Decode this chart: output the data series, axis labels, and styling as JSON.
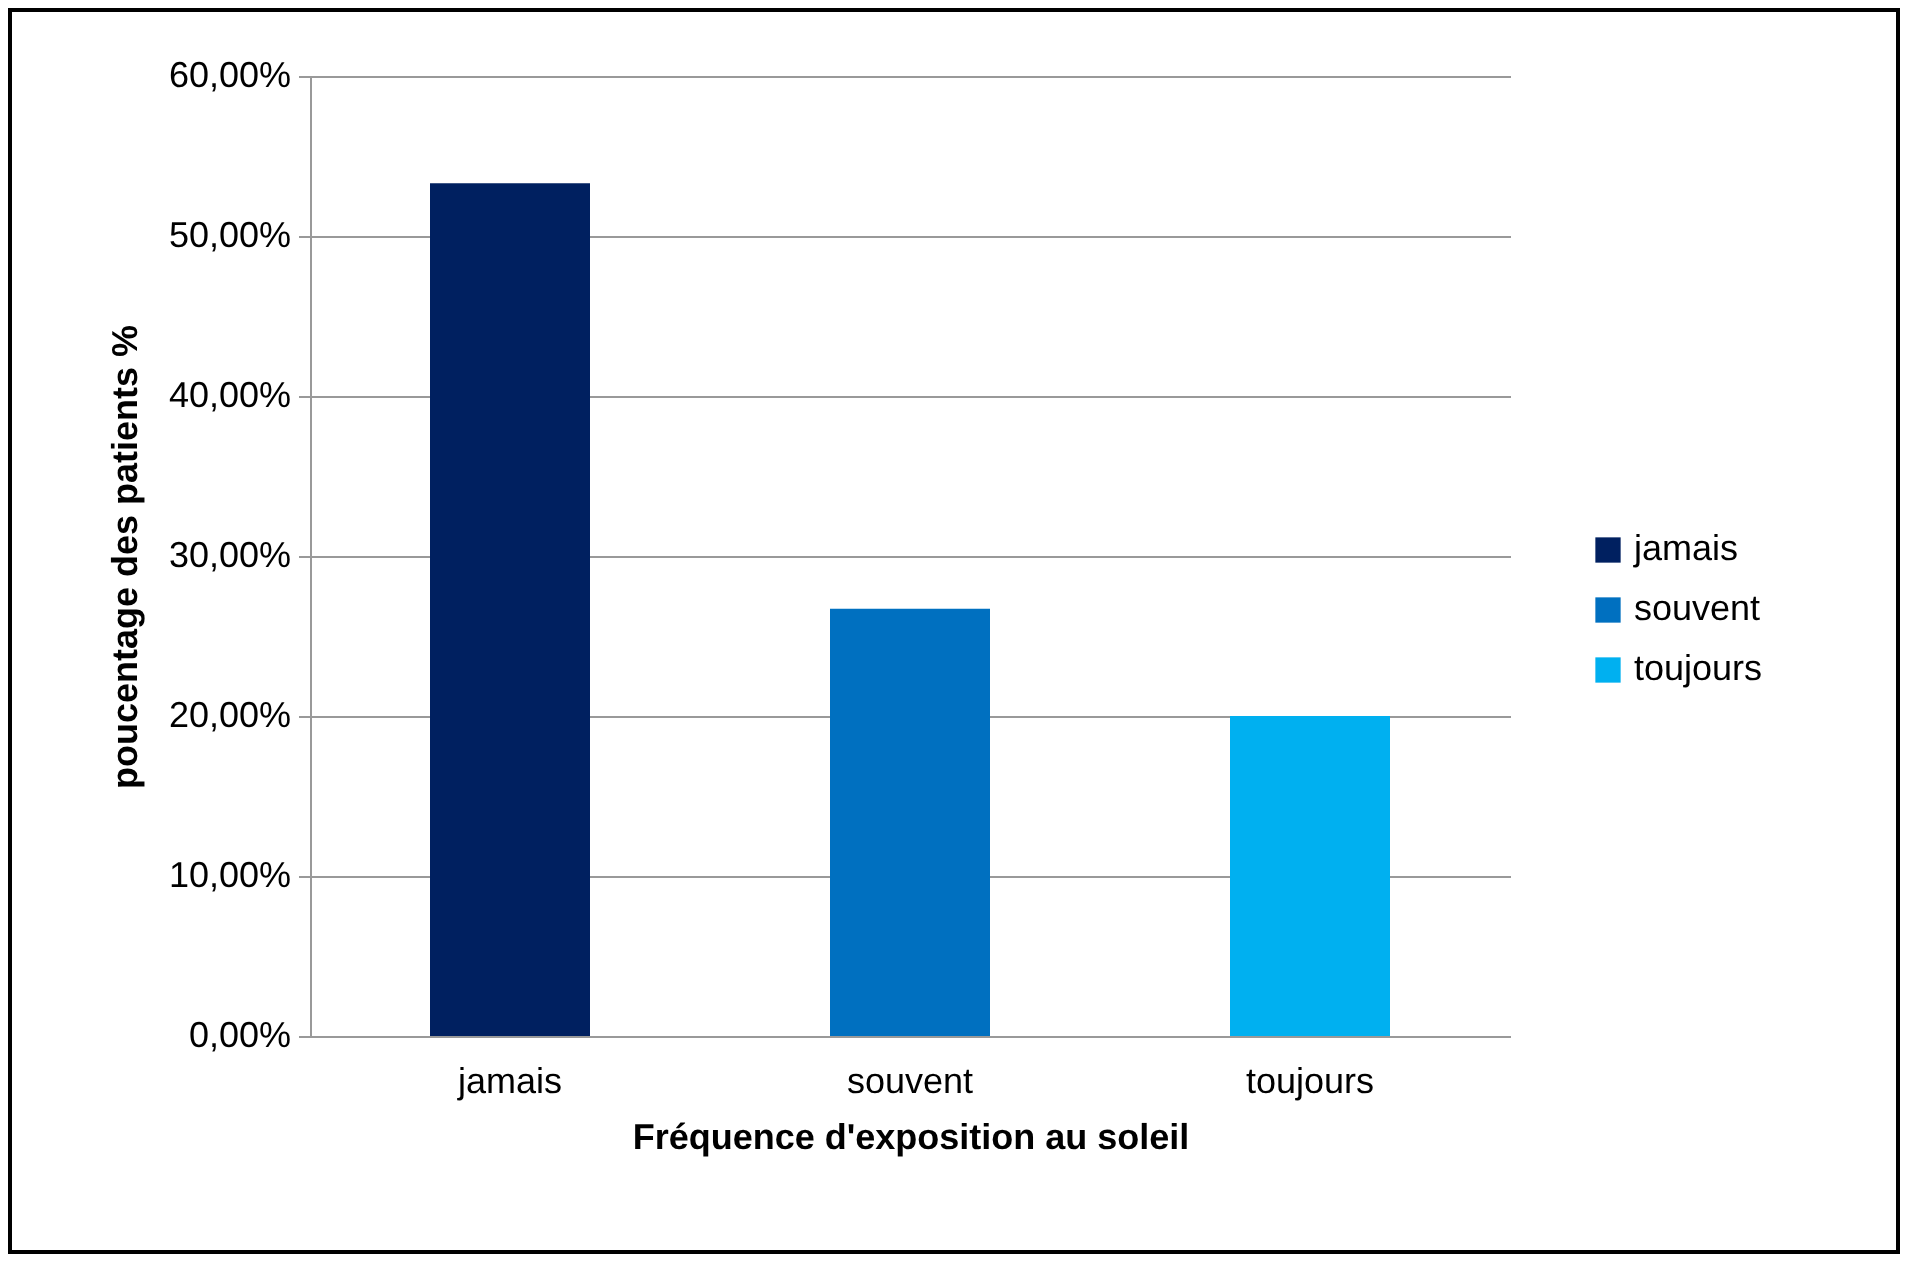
{
  "chart_data": {
    "type": "bar",
    "xlabel": "Fréquence d'exposition au soleil",
    "ylabel": "poucentage des patients %",
    "categories": [
      "jamais",
      "souvent",
      "toujours"
    ],
    "series": [
      {
        "name": "jamais",
        "color": "#002060",
        "values": [
          53.3,
          null,
          null
        ]
      },
      {
        "name": "souvent",
        "color": "#0070c0",
        "values": [
          null,
          26.7,
          null
        ]
      },
      {
        "name": "toujours",
        "color": "#00b0f0",
        "values": [
          null,
          null,
          20
        ]
      }
    ],
    "ylim": [
      0,
      60
    ],
    "yticks": [
      {
        "value": 0,
        "label": "0,00%"
      },
      {
        "value": 10,
        "label": "10,00%"
      },
      {
        "value": 20,
        "label": "20,00%"
      },
      {
        "value": 30,
        "label": "30,00%"
      },
      {
        "value": 40,
        "label": "40,00%"
      },
      {
        "value": 50,
        "label": "50,00%"
      },
      {
        "value": 60,
        "label": "60,00%"
      }
    ],
    "grid": "y",
    "legend": "right"
  }
}
